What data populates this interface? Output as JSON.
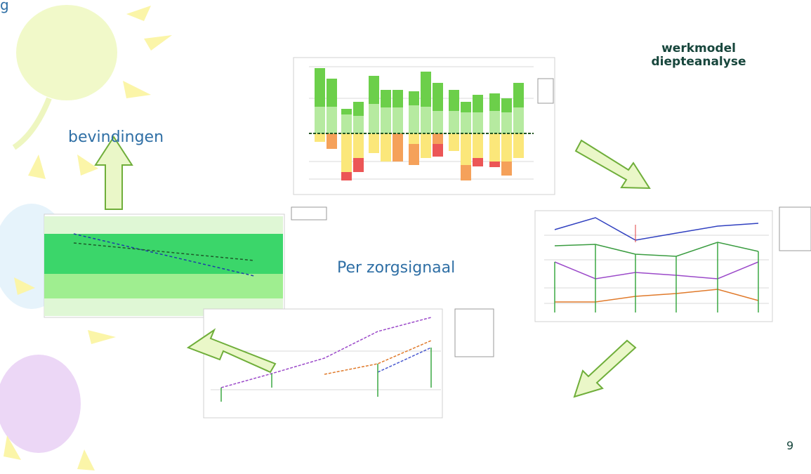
{
  "corner_text": "g",
  "left_label": "bevindingen",
  "title": {
    "line1": "werkmodel",
    "line2": "diepteanalyse"
  },
  "center_label": "Per zorgsignaal",
  "page_number": "9"
}
